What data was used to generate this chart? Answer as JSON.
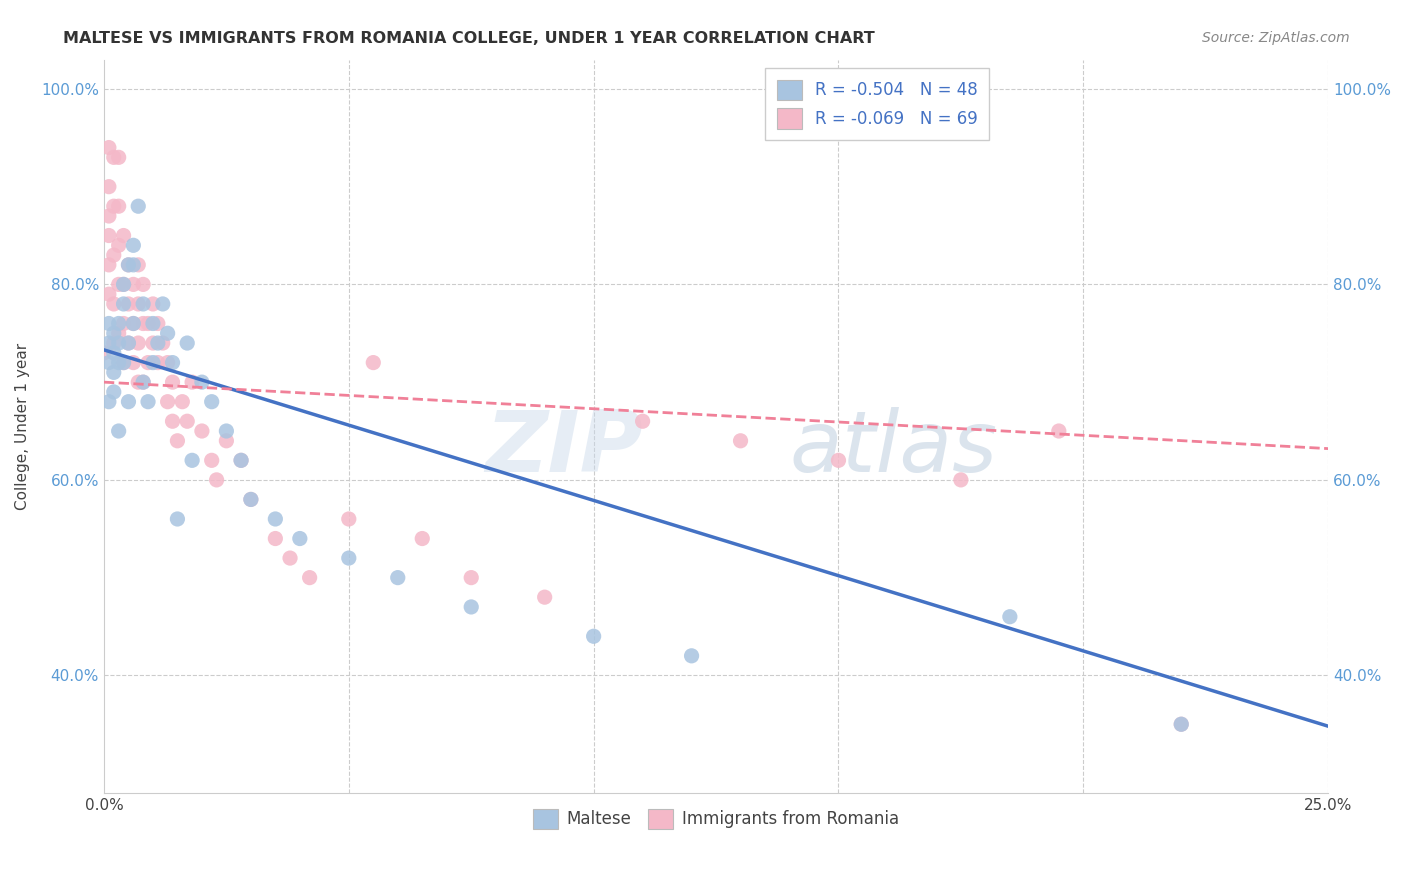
{
  "title": "MALTESE VS IMMIGRANTS FROM ROMANIA COLLEGE, UNDER 1 YEAR CORRELATION CHART",
  "source": "Source: ZipAtlas.com",
  "ylabel": "College, Under 1 year",
  "legend_1_label": "R = -0.504   N = 48",
  "legend_2_label": "R = -0.069   N = 69",
  "maltese_color": "#a8c4e0",
  "romania_color": "#f4b8c8",
  "maltese_line_color": "#4472c4",
  "romania_line_color": "#f08098",
  "background_color": "#ffffff",
  "watermark_zip": "ZIP",
  "watermark_atlas": "atlas",
  "xmin": 0.0,
  "xmax": 0.25,
  "ymin": 0.28,
  "ymax": 1.03,
  "ytick_vals": [
    0.4,
    0.6,
    0.8,
    1.0
  ],
  "ytick_labels": [
    "40.0%",
    "60.0%",
    "80.0%",
    "100.0%"
  ],
  "xtick_vals": [
    0.0,
    0.25
  ],
  "xtick_labels": [
    "0.0%",
    "25.0%"
  ],
  "maltese_trend_x": [
    0.0,
    0.25
  ],
  "maltese_trend_y": [
    0.733,
    0.348
  ],
  "romania_trend_x": [
    0.0,
    0.25
  ],
  "romania_trend_y": [
    0.7,
    0.632
  ],
  "maltese_x": [
    0.001,
    0.001,
    0.001,
    0.001,
    0.002,
    0.002,
    0.002,
    0.002,
    0.003,
    0.003,
    0.003,
    0.003,
    0.004,
    0.004,
    0.004,
    0.005,
    0.005,
    0.005,
    0.006,
    0.006,
    0.006,
    0.007,
    0.008,
    0.008,
    0.009,
    0.01,
    0.01,
    0.011,
    0.012,
    0.013,
    0.014,
    0.015,
    0.017,
    0.018,
    0.02,
    0.022,
    0.025,
    0.028,
    0.03,
    0.035,
    0.04,
    0.05,
    0.06,
    0.075,
    0.1,
    0.12,
    0.185,
    0.22
  ],
  "maltese_y": [
    0.76,
    0.74,
    0.72,
    0.68,
    0.75,
    0.73,
    0.71,
    0.69,
    0.76,
    0.74,
    0.72,
    0.65,
    0.8,
    0.78,
    0.72,
    0.82,
    0.74,
    0.68,
    0.84,
    0.82,
    0.76,
    0.88,
    0.78,
    0.7,
    0.68,
    0.76,
    0.72,
    0.74,
    0.78,
    0.75,
    0.72,
    0.56,
    0.74,
    0.62,
    0.7,
    0.68,
    0.65,
    0.62,
    0.58,
    0.56,
    0.54,
    0.52,
    0.5,
    0.47,
    0.44,
    0.42,
    0.46,
    0.35
  ],
  "romania_x": [
    0.0,
    0.001,
    0.001,
    0.001,
    0.001,
    0.001,
    0.001,
    0.002,
    0.002,
    0.002,
    0.002,
    0.002,
    0.003,
    0.003,
    0.003,
    0.003,
    0.003,
    0.004,
    0.004,
    0.004,
    0.004,
    0.005,
    0.005,
    0.005,
    0.006,
    0.006,
    0.006,
    0.007,
    0.007,
    0.007,
    0.007,
    0.008,
    0.008,
    0.008,
    0.009,
    0.009,
    0.01,
    0.01,
    0.011,
    0.011,
    0.012,
    0.013,
    0.013,
    0.014,
    0.014,
    0.015,
    0.016,
    0.017,
    0.018,
    0.02,
    0.022,
    0.023,
    0.025,
    0.028,
    0.03,
    0.035,
    0.038,
    0.042,
    0.05,
    0.055,
    0.065,
    0.075,
    0.09,
    0.11,
    0.13,
    0.15,
    0.175,
    0.195,
    0.22
  ],
  "romania_y": [
    0.73,
    0.94,
    0.9,
    0.87,
    0.85,
    0.82,
    0.79,
    0.93,
    0.88,
    0.83,
    0.78,
    0.74,
    0.93,
    0.88,
    0.84,
    0.8,
    0.75,
    0.85,
    0.8,
    0.76,
    0.72,
    0.82,
    0.78,
    0.74,
    0.8,
    0.76,
    0.72,
    0.82,
    0.78,
    0.74,
    0.7,
    0.8,
    0.76,
    0.7,
    0.76,
    0.72,
    0.78,
    0.74,
    0.76,
    0.72,
    0.74,
    0.72,
    0.68,
    0.7,
    0.66,
    0.64,
    0.68,
    0.66,
    0.7,
    0.65,
    0.62,
    0.6,
    0.64,
    0.62,
    0.58,
    0.54,
    0.52,
    0.5,
    0.56,
    0.72,
    0.54,
    0.5,
    0.48,
    0.66,
    0.64,
    0.62,
    0.6,
    0.65,
    0.35
  ]
}
